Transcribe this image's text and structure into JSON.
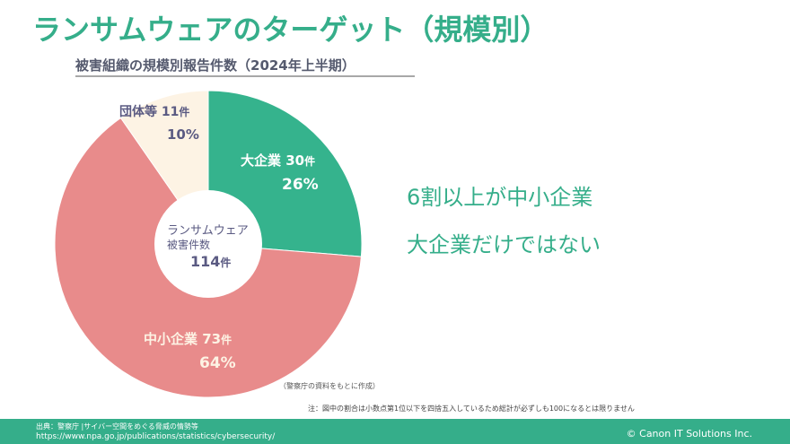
{
  "header": {
    "title": "ランサムウェアのターゲット（規模別）",
    "subtitle": "被害組織の規模別報告件数（2024年上半期）"
  },
  "chart_data": {
    "type": "pie",
    "variant": "donut",
    "title": "被害組織の規模別報告件数（2024年上半期）",
    "center_label": {
      "line1": "ランサムウェア",
      "line2": "被害件数",
      "total": "114",
      "unit": "件"
    },
    "slices": [
      {
        "name": "大企業",
        "count": 30,
        "count_label": "30",
        "unit": "件",
        "percent_label": "26%",
        "color": "#35b38d"
      },
      {
        "name": "中小企業",
        "count": 73,
        "count_label": "73",
        "unit": "件",
        "percent_label": "64%",
        "color": "#e88b8b"
      },
      {
        "name": "団体等",
        "count": 11,
        "count_label": "11",
        "unit": "件",
        "percent_label": "10%",
        "color": "#fdf3e4"
      }
    ],
    "start": "12 o'clock",
    "direction": "clockwise"
  },
  "messages": {
    "line1": "6割以上が中小企業",
    "line2": "大企業だけではない"
  },
  "notes": {
    "source_note": "（警察庁の資料をもとに作成）",
    "footnote": "注：図中の割合は小数点第1位以下を四捨五入しているため総計が必ずしも100になるとは限りません"
  },
  "footer": {
    "source_line1": "出典：警察庁 |サイバー空間をめぐる脅威の情勢等",
    "source_line2": "https://www.npa.go.jp/publications/statistics/cybersecurity/",
    "copyright": "© Canon IT Solutions Inc."
  }
}
